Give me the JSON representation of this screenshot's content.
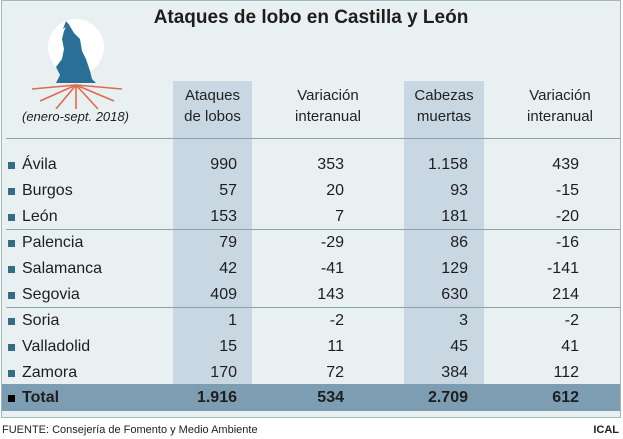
{
  "chart_data": {
    "type": "table",
    "title": "Ataques de lobo en Castilla y León",
    "period": "(enero-sept. 2018)",
    "columns": [
      [
        "Ataques",
        "de lobos"
      ],
      [
        "Variación",
        "interanual"
      ],
      [
        "Cabezas",
        "muertas"
      ],
      [
        "Variación",
        "interanual"
      ]
    ],
    "rows": [
      {
        "name": "Ávila",
        "values": [
          "990",
          "353",
          "1.158",
          "439"
        ]
      },
      {
        "name": "Burgos",
        "values": [
          "57",
          "20",
          "93",
          "-15"
        ]
      },
      {
        "name": "León",
        "values": [
          "153",
          "7",
          "181",
          "-20"
        ]
      },
      {
        "name": "Palencia",
        "values": [
          "79",
          "-29",
          "86",
          "-16"
        ]
      },
      {
        "name": "Salamanca",
        "values": [
          "42",
          "-41",
          "129",
          "-141"
        ]
      },
      {
        "name": "Segovia",
        "values": [
          "409",
          "143",
          "630",
          "214"
        ]
      },
      {
        "name": "Soria",
        "values": [
          "1",
          "-2",
          "3",
          "-2"
        ]
      },
      {
        "name": "Valladolid",
        "values": [
          "15",
          "11",
          "45",
          "41"
        ]
      },
      {
        "name": "Zamora",
        "values": [
          "170",
          "72",
          "384",
          "112"
        ]
      }
    ],
    "total": {
      "name": "Total",
      "values": [
        "1.916",
        "534",
        "2.709",
        "612"
      ]
    }
  },
  "footer": {
    "source": "FUENTE: Consejería de Fomento y Medio Ambiente",
    "credit": "ICAL"
  },
  "colors": {
    "background": "#e8f0f1",
    "column_shade": "#c9d7e2",
    "total_band": "#7d9db3",
    "bullet": "#356b85",
    "logo_wolf": "#2a6f96",
    "logo_rays": "#e06a4d"
  },
  "icons": {
    "logo": "howling-wolf-icon"
  }
}
